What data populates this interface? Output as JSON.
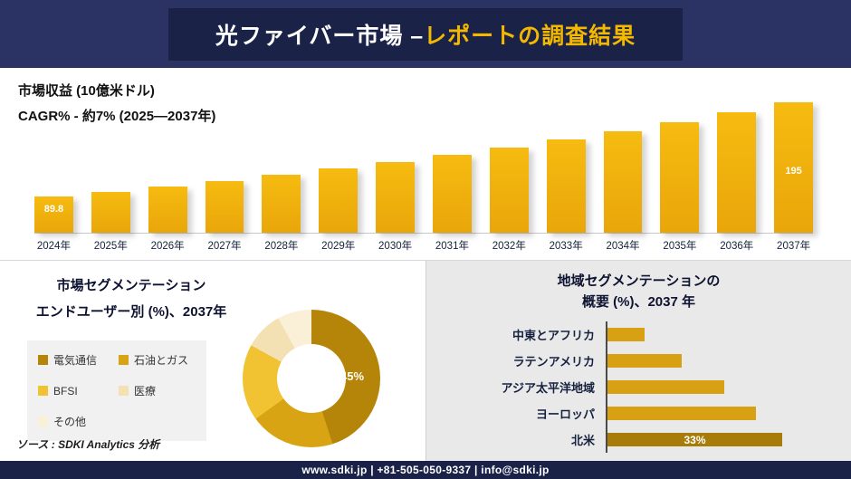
{
  "header": {
    "title_main": "光ファイバー市場 –",
    "title_accent": "レポートの調査結果"
  },
  "revenue": {
    "metric_label": "市場収益 (10億米ドル)",
    "cagr_label": "CAGR% - 約7% (2025―2037年)"
  },
  "segmentation": {
    "title_line1": "市場セグメンテーション",
    "title_line2": "エンドユーザー別 (%)、2037年",
    "source": "ソース : SDKI Analytics 分析"
  },
  "regional": {
    "title_line1": "地域セグメンテーションの",
    "title_line2": "概要 (%)、2037 年"
  },
  "footer": {
    "contact": "www.sdki.jp | +81-505-050-9337 | info@sdki.jp"
  },
  "colors": {
    "navy": "#1a2248",
    "navy_light": "#2b3264",
    "gold_accent": "#f5b800"
  },
  "chart_data": [
    {
      "type": "bar",
      "title": "市場収益 (10億米ドル)",
      "subtitle": "CAGR% - 約7% (2025―2037年)",
      "categories": [
        "2024年",
        "2025年",
        "2026年",
        "2027年",
        "2028年",
        "2029年",
        "2030年",
        "2031年",
        "2032年",
        "2033年",
        "2034年",
        "2035年",
        "2036年",
        "2037年"
      ],
      "values": [
        89.8,
        95.3,
        101.2,
        107.4,
        114.0,
        121.0,
        128.4,
        136.3,
        144.6,
        153.5,
        162.9,
        172.9,
        183.5,
        195
      ],
      "data_labels": {
        "first": "89.8",
        "last": "195"
      },
      "ylim": [
        60,
        195
      ],
      "bar_color": "#e9a60a",
      "bar_color_top": "#f6bb10",
      "xlabel": "",
      "ylabel": "市場収益 (10億米ドル)",
      "grid": false,
      "legend": "none"
    },
    {
      "type": "pie",
      "donut": true,
      "title": "市場セグメンテーション エンドユーザー別 (%)、2037年",
      "labels": [
        "電気通信",
        "石油とガス",
        "BFSI",
        "医療",
        "その他"
      ],
      "values": [
        45,
        20,
        18,
        9,
        8
      ],
      "colors": [
        "#b5850a",
        "#d9a414",
        "#f1c232",
        "#f3e0b3",
        "#faf0d8"
      ],
      "data_label": "45%",
      "legend_position": "left"
    },
    {
      "type": "bar",
      "orientation": "horizontal",
      "title": "地域セグメンテーションの概要 (%)、2037 年",
      "categories": [
        "中東とアフリカ",
        "ラテンアメリカ",
        "アジア太平洋地域",
        "ヨーロッパ",
        "北米"
      ],
      "values": [
        7,
        14,
        22,
        28,
        33
      ],
      "xlim": [
        0,
        35
      ],
      "bar_color": "#d8a013",
      "highlight_color": "#a87c08",
      "data_label": "33%",
      "grid": false,
      "legend": "none"
    }
  ]
}
